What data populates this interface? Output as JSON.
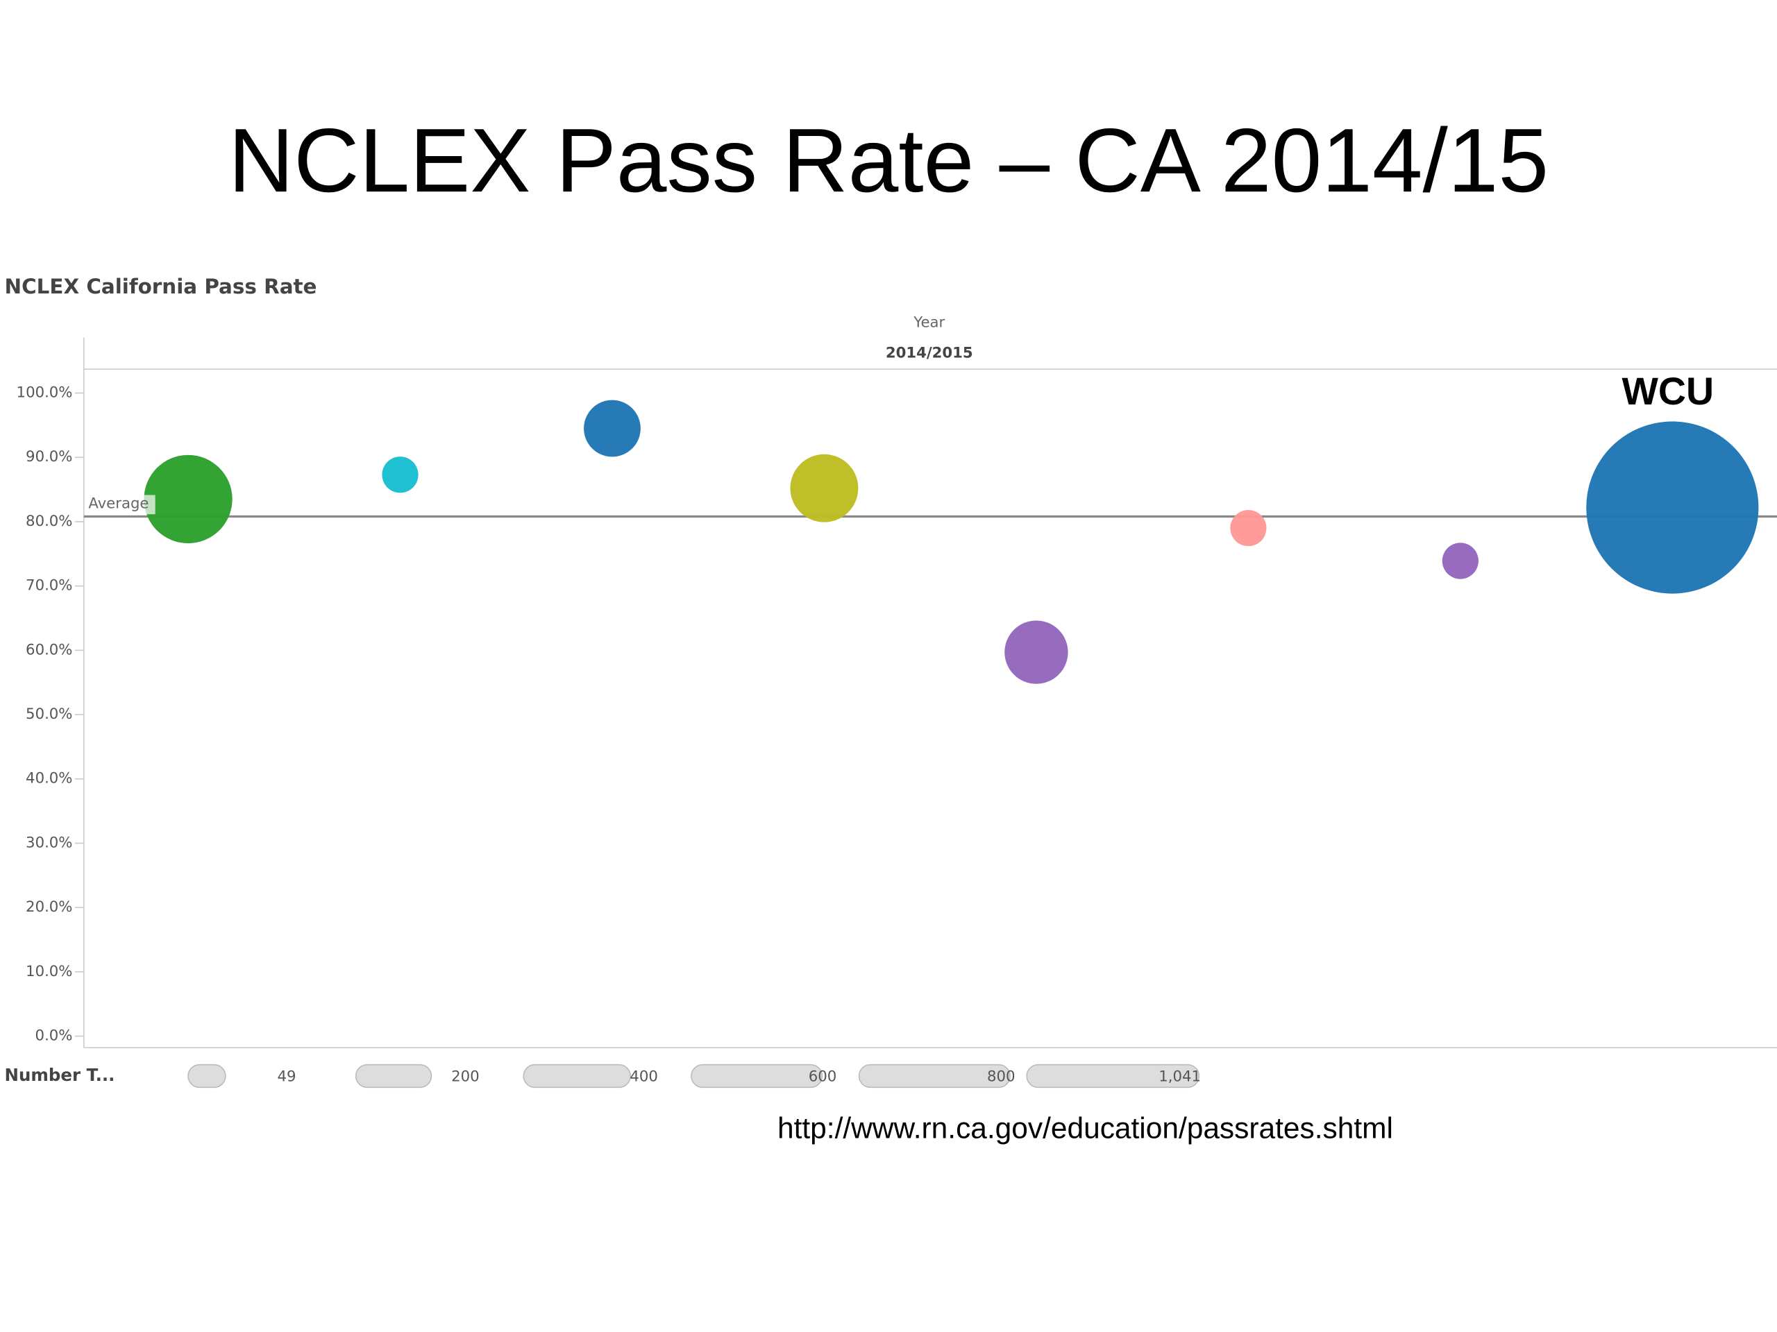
{
  "slide_title": "NCLEX Pass Rate – CA 2014/15",
  "source_url": "http://www.rn.ca.gov/education/passrates.shtml",
  "chart_data": {
    "type": "bubble",
    "title": "NCLEX California Pass Rate",
    "column_header": "Year",
    "column_value": "2014/2015",
    "categories": [
      null,
      null,
      null,
      null,
      null,
      null,
      null,
      null
    ],
    "values": [
      83.5,
      87.3,
      94.5,
      85.2,
      59.7,
      79.0,
      73.9,
      82.2
    ],
    "sizes": [
      274,
      46,
      113,
      162,
      141,
      46,
      46,
      1041
    ],
    "colors": [
      "#2ca02c",
      "#17becf",
      "#1f77b4",
      "#bcbd22",
      "#9467bd",
      "#ff9896",
      "#9467bd",
      "#1f77b4"
    ],
    "annotation": "WCU",
    "reference_line": {
      "label": "Average",
      "value": 80.8
    },
    "ylim": [
      -1.8,
      103.7
    ],
    "yticks": [
      {
        "value": 0,
        "label": "0.0%"
      },
      {
        "value": 10,
        "label": "10.0%"
      },
      {
        "value": 20,
        "label": "20.0%"
      },
      {
        "value": 30,
        "label": "30.0%"
      },
      {
        "value": 40,
        "label": "40.0%"
      },
      {
        "value": 50,
        "label": "50.0%"
      },
      {
        "value": 60,
        "label": "60.0%"
      },
      {
        "value": 70,
        "label": "70.0%"
      },
      {
        "value": 80,
        "label": "80.0%"
      },
      {
        "value": 90,
        "label": "90.0%"
      },
      {
        "value": 100,
        "label": "100.0%"
      }
    ],
    "size_legend": {
      "title": "Number T...",
      "ticks": [
        49,
        200,
        400,
        600,
        800,
        {
          "value": 1041,
          "label": "1,041"
        }
      ]
    }
  }
}
